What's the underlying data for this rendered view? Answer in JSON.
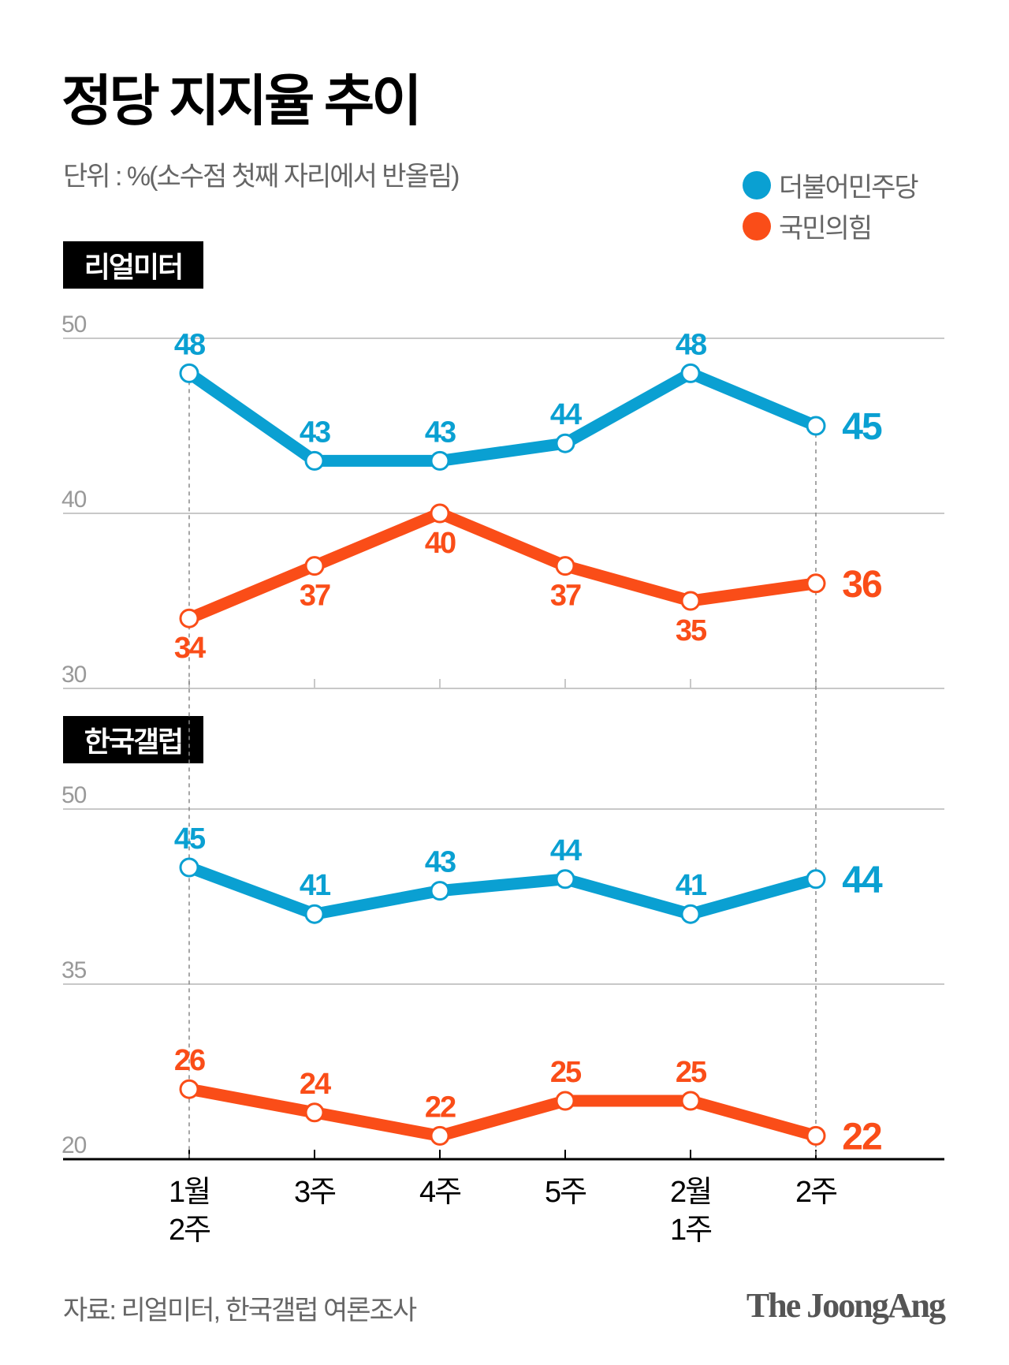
{
  "title": "정당 지지율 추이",
  "subtitle": "단위 : %(소수점 첫째 자리에서 반올림)",
  "legend": [
    {
      "name": "더불어민주당",
      "color": "#0aa0d2"
    },
    {
      "name": "국민의힘",
      "color": "#fa4d18"
    }
  ],
  "footer": {
    "source": "자료: 리얼미터, 한국갤럽 여론조사",
    "logo": "The JoongAng"
  },
  "chart_data": [
    {
      "type": "line",
      "title": "리얼미터",
      "categories": [
        "1월 2주",
        "3주",
        "4주",
        "5주",
        "2월 1주",
        "2주"
      ],
      "yticks": [
        50,
        40,
        30
      ],
      "ylim": [
        30,
        50
      ],
      "grid": true,
      "series": [
        {
          "name": "더불어민주당",
          "color": "#0aa0d2",
          "values": [
            48,
            43,
            43,
            44,
            48,
            45
          ]
        },
        {
          "name": "국민의힘",
          "color": "#fa4d18",
          "values": [
            34,
            37,
            40,
            37,
            35,
            36
          ]
        }
      ]
    },
    {
      "type": "line",
      "title": "한국갤럽",
      "categories": [
        "1월 2주",
        "3주",
        "4주",
        "5주",
        "2월 1주",
        "2주"
      ],
      "yticks": [
        50,
        35,
        20
      ],
      "ylim": [
        20,
        50
      ],
      "grid": true,
      "series": [
        {
          "name": "더불어민주당",
          "color": "#0aa0d2",
          "values": [
            45,
            41,
            43,
            44,
            41,
            44
          ]
        },
        {
          "name": "국민의힘",
          "color": "#fa4d18",
          "values": [
            26,
            24,
            22,
            25,
            25,
            22
          ]
        }
      ]
    }
  ],
  "xaxis_labels": [
    [
      "1월",
      "2주"
    ],
    [
      "3주"
    ],
    [
      "4주"
    ],
    [
      "5주"
    ],
    [
      "2월",
      "1주"
    ],
    [
      "2주"
    ]
  ]
}
